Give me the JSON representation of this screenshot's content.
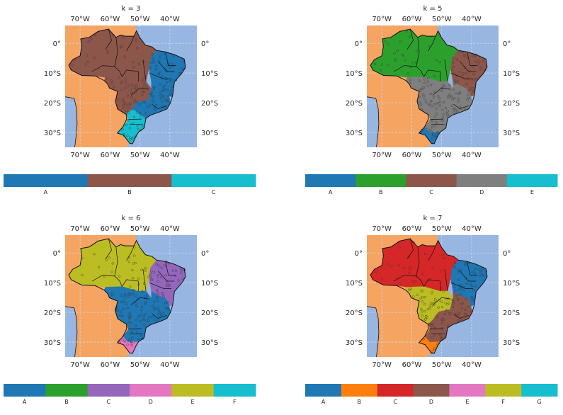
{
  "colors": {
    "ocean": "#97b6e1",
    "land": "#f5a462",
    "grid": "#d8dde6",
    "clusters": {
      "blue": "#1f77b4",
      "orange": "#ff7f0e",
      "green": "#2ca02c",
      "red": "#d62728",
      "purple": "#9467bd",
      "brown": "#8c564b",
      "pink": "#e377c2",
      "gray": "#7f7f7f",
      "olive": "#bcbd22",
      "cyan": "#17becf"
    }
  },
  "panels": [
    {
      "title": "k = 3",
      "lon_ticks": [
        "70°W",
        "60°W",
        "50°W",
        "40°W"
      ],
      "lat_ticks": [
        "0°",
        "10°S",
        "20°S",
        "30°S"
      ],
      "legend": [
        {
          "label": "A",
          "color": "blue"
        },
        {
          "label": "B",
          "color": "brown"
        },
        {
          "label": "C",
          "color": "cyan"
        }
      ],
      "regions": {
        "north": "brown",
        "centre_west": "brown",
        "northeast": "blue",
        "southeast": "blue",
        "south": "cyan",
        "south_tip": "cyan"
      }
    },
    {
      "title": "k = 5",
      "lon_ticks": [
        "70°W",
        "60°W",
        "50°W",
        "40°W"
      ],
      "lat_ticks": [
        "0°",
        "10°S",
        "20°S",
        "30°S"
      ],
      "legend": [
        {
          "label": "A",
          "color": "blue"
        },
        {
          "label": "B",
          "color": "green"
        },
        {
          "label": "C",
          "color": "brown"
        },
        {
          "label": "D",
          "color": "gray"
        },
        {
          "label": "E",
          "color": "cyan"
        }
      ],
      "regions": {
        "north": "green",
        "centre_west": "gray",
        "northeast": "brown",
        "southeast": "gray",
        "south": "gray",
        "south_tip": "blue"
      }
    },
    {
      "title": "k = 6",
      "lon_ticks": [
        "70°W",
        "60°W",
        "50°W",
        "40°W"
      ],
      "lat_ticks": [
        "0°",
        "10°S",
        "20°S",
        "30°S"
      ],
      "legend": [
        {
          "label": "A",
          "color": "blue"
        },
        {
          "label": "B",
          "color": "green"
        },
        {
          "label": "C",
          "color": "purple"
        },
        {
          "label": "D",
          "color": "pink"
        },
        {
          "label": "E",
          "color": "olive"
        },
        {
          "label": "F",
          "color": "cyan"
        }
      ],
      "regions": {
        "north": "olive",
        "centre_west": "blue",
        "northeast": "purple",
        "southeast": "blue",
        "south": "blue",
        "south_tip": "pink"
      }
    },
    {
      "title": "k = 7",
      "lon_ticks": [
        "70°W",
        "60°W",
        "50°W",
        "40°W"
      ],
      "lat_ticks": [
        "0°",
        "10°S",
        "20°S",
        "30°S"
      ],
      "legend": [
        {
          "label": "A",
          "color": "blue"
        },
        {
          "label": "B",
          "color": "orange"
        },
        {
          "label": "C",
          "color": "red"
        },
        {
          "label": "D",
          "color": "brown"
        },
        {
          "label": "E",
          "color": "pink"
        },
        {
          "label": "F",
          "color": "olive"
        },
        {
          "label": "G",
          "color": "cyan"
        }
      ],
      "regions": {
        "north": "red",
        "centre_west": "olive",
        "northeast": "blue",
        "southeast": "brown",
        "south": "brown",
        "south_tip": "orange"
      }
    }
  ]
}
